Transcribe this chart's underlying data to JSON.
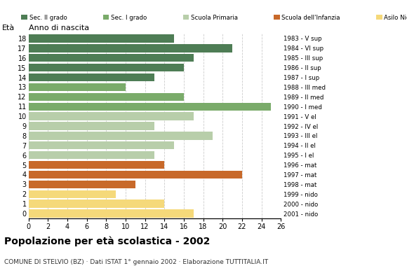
{
  "ages": [
    18,
    17,
    16,
    15,
    14,
    13,
    12,
    11,
    10,
    9,
    8,
    7,
    6,
    5,
    4,
    3,
    2,
    1,
    0
  ],
  "years": [
    "1983 - V sup",
    "1984 - VI sup",
    "1985 - III sup",
    "1986 - II sup",
    "1987 - I sup",
    "1988 - III med",
    "1989 - II med",
    "1990 - I med",
    "1991 - V el",
    "1992 - IV el",
    "1993 - III el",
    "1994 - II el",
    "1995 - I el",
    "1996 - mat",
    "1997 - mat",
    "1998 - mat",
    "1999 - nido",
    "2000 - nido",
    "2001 - nido"
  ],
  "values": [
    15,
    21,
    17,
    16,
    13,
    10,
    16,
    25,
    17,
    13,
    19,
    15,
    13,
    14,
    22,
    11,
    9,
    14,
    17
  ],
  "categories": [
    "Sec. II grado",
    "Sec. II grado",
    "Sec. II grado",
    "Sec. II grado",
    "Sec. II grado",
    "Sec. I grado",
    "Sec. I grado",
    "Sec. I grado",
    "Scuola Primaria",
    "Scuola Primaria",
    "Scuola Primaria",
    "Scuola Primaria",
    "Scuola Primaria",
    "Scuola dell'Infanzia",
    "Scuola dell'Infanzia",
    "Scuola dell'Infanzia",
    "Asilo Nido",
    "Asilo Nido",
    "Asilo Nido"
  ],
  "colors": {
    "Sec. II grado": "#4e7d55",
    "Sec. I grado": "#7aab6a",
    "Scuola Primaria": "#b8ceaa",
    "Scuola dell'Infanzia": "#c8692a",
    "Asilo Nido": "#f5d97a"
  },
  "legend_order": [
    "Sec. II grado",
    "Sec. I grado",
    "Scuola Primaria",
    "Scuola dell'Infanzia",
    "Asilo Nido"
  ],
  "xlim": [
    0,
    26
  ],
  "xticks": [
    0,
    2,
    4,
    6,
    8,
    10,
    12,
    14,
    16,
    18,
    20,
    22,
    24,
    26
  ],
  "xlabel_age": "Età",
  "xlabel_year": "Anno di nascita",
  "title": "Popolazione per età scolastica - 2002",
  "subtitle": "COMUNE DI STELVIO (BZ) · Dati ISTAT 1° gennaio 2002 · Elaborazione TUTTITALIA.IT",
  "bar_height": 0.82,
  "background_color": "#ffffff",
  "grid_color": "#cccccc"
}
